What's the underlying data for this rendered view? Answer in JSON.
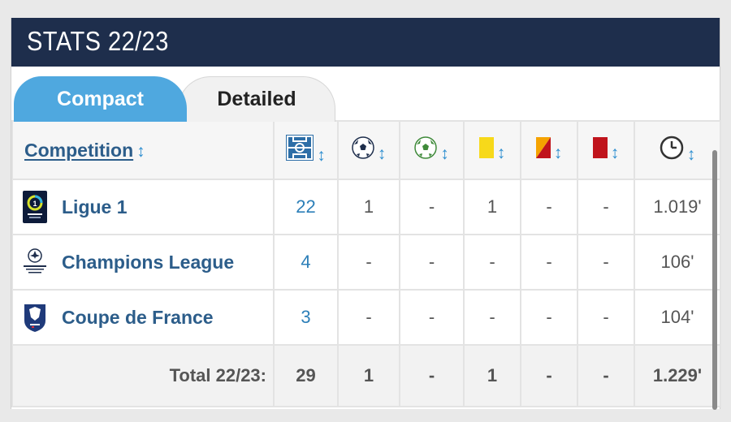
{
  "header": {
    "title": "STATS 22/23"
  },
  "tabs": {
    "compact": "Compact",
    "detailed": "Detailed"
  },
  "table": {
    "competition_header": "Competition",
    "column_icons": [
      "pitch-icon",
      "goal-ball-icon",
      "assist-ball-icon",
      "yellow-card-icon",
      "second-yellow-card-icon",
      "red-card-icon",
      "clock-icon"
    ],
    "rows": [
      {
        "competition": "Ligue 1",
        "logo": "ligue1-logo",
        "apps": "22",
        "goals": "1",
        "assists": "-",
        "yellow": "1",
        "yellow_red": "-",
        "red": "-",
        "minutes": "1.019'"
      },
      {
        "competition": "Champions League",
        "logo": "ucl-logo",
        "apps": "4",
        "goals": "-",
        "assists": "-",
        "yellow": "-",
        "yellow_red": "-",
        "red": "-",
        "minutes": "106'"
      },
      {
        "competition": "Coupe de France",
        "logo": "cdf-logo",
        "apps": "3",
        "goals": "-",
        "assists": "-",
        "yellow": "-",
        "yellow_red": "-",
        "red": "-",
        "minutes": "104'"
      }
    ],
    "total": {
      "label": "Total 22/23:",
      "apps": "29",
      "goals": "1",
      "assists": "-",
      "yellow": "1",
      "yellow_red": "-",
      "red": "-",
      "minutes": "1.229'"
    }
  },
  "colors": {
    "header_bg": "#1e2e4c",
    "tab_active": "#4fa8df",
    "link_blue": "#2c5d8a",
    "yellow_card": "#f7d91a",
    "red_card": "#c0141c"
  }
}
